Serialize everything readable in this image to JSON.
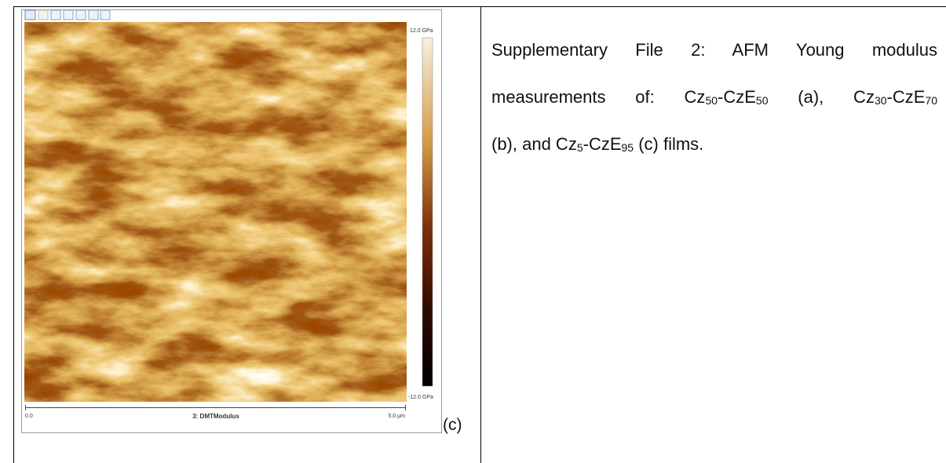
{
  "figure": {
    "colorbar_max": "12.0 GPa",
    "colorbar_min": "-12.0 GPa",
    "scale_start": "0.0",
    "channel": "3: DMTModulus",
    "scale_end": "5.0 µm",
    "panel_label": "(c)"
  },
  "caption": {
    "lines": [
      [
        {
          "text": "Supplementary File 2: AFM Young modulus"
        }
      ],
      [
        {
          "text": "measurements of: Cz"
        },
        {
          "text": "50",
          "sub": true
        },
        {
          "text": "-CzE"
        },
        {
          "text": "50",
          "sub": true
        },
        {
          "text": " (a), Cz"
        },
        {
          "text": "30",
          "sub": true
        },
        {
          "text": "-CzE"
        },
        {
          "text": "70",
          "sub": true
        }
      ],
      [
        {
          "text": "(b), and Cz"
        },
        {
          "text": "5",
          "sub": true
        },
        {
          "text": "-CzE"
        },
        {
          "text": "95",
          "sub": true
        },
        {
          "text": " (c) films."
        }
      ]
    ]
  }
}
